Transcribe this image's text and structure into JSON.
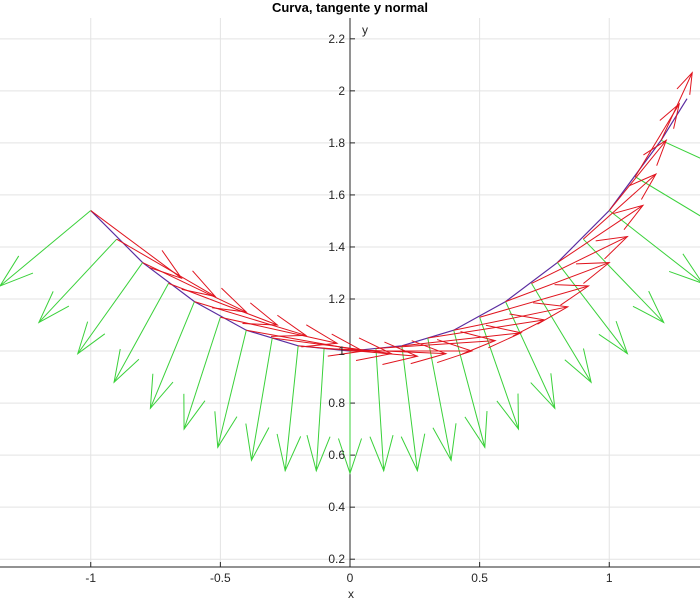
{
  "chart_data": {
    "type": "line",
    "title": "Curva, tangente y normal",
    "xlabel": "x",
    "ylabel": "y",
    "xlim": [
      -1.35,
      1.35
    ],
    "ylim": [
      0.17,
      2.28
    ],
    "xticks": [
      -1,
      -0.5,
      0,
      0.5,
      1
    ],
    "xtick_labels": [
      "-1",
      "-0.5",
      "0",
      "0.5",
      "1"
    ],
    "yticks": [
      0.2,
      0.4,
      0.6,
      0.8,
      1,
      1.2,
      1.4,
      1.6,
      1.8,
      2,
      2.2
    ],
    "ytick_labels": [
      "0.2",
      "0.4",
      "0.6",
      "0.8",
      "1",
      "1.2",
      "1.4",
      "1.6",
      "1.8",
      "2",
      "2.2"
    ],
    "grid": true,
    "axes_through_origin": true,
    "series": [
      {
        "kind": "curve",
        "color": "#5a2ca0",
        "x": [
          -1,
          -0.8,
          -0.6,
          -0.4,
          -0.2,
          0,
          0.2,
          0.4,
          0.6,
          0.8,
          1,
          1.2,
          1.3
        ],
        "y": [
          1.54,
          1.34,
          1.19,
          1.08,
          1.02,
          1.0,
          1.02,
          1.08,
          1.19,
          1.34,
          1.54,
          1.81,
          1.97
        ]
      },
      {
        "kind": "tangent_vectors",
        "color": "#e0141e",
        "vectors": [
          {
            "x": -1.0,
            "y": 1.54,
            "u": 0.35,
            "v": -0.26
          },
          {
            "x": -0.9,
            "y": 1.43,
            "u": 0.38,
            "v": -0.22
          },
          {
            "x": -0.8,
            "y": 1.34,
            "u": 0.4,
            "v": -0.19
          },
          {
            "x": -0.7,
            "y": 1.26,
            "u": 0.42,
            "v": -0.16
          },
          {
            "x": -0.6,
            "y": 1.19,
            "u": 0.43,
            "v": -0.13
          },
          {
            "x": -0.5,
            "y": 1.13,
            "u": 0.45,
            "v": -0.1
          },
          {
            "x": -0.4,
            "y": 1.08,
            "u": 0.45,
            "v": -0.08
          },
          {
            "x": -0.3,
            "y": 1.05,
            "u": 0.46,
            "v": -0.06
          },
          {
            "x": -0.2,
            "y": 1.02,
            "u": 0.46,
            "v": -0.04
          },
          {
            "x": -0.1,
            "y": 1.01,
            "u": 0.47,
            "v": -0.02
          },
          {
            "x": 0.0,
            "y": 1.0,
            "u": 0.47,
            "v": 0.0
          },
          {
            "x": 0.1,
            "y": 1.01,
            "u": 0.46,
            "v": 0.03
          },
          {
            "x": 0.2,
            "y": 1.02,
            "u": 0.46,
            "v": 0.05
          },
          {
            "x": 0.3,
            "y": 1.05,
            "u": 0.45,
            "v": 0.07
          },
          {
            "x": 0.4,
            "y": 1.08,
            "u": 0.44,
            "v": 0.09
          },
          {
            "x": 0.5,
            "y": 1.13,
            "u": 0.42,
            "v": 0.12
          },
          {
            "x": 0.6,
            "y": 1.19,
            "u": 0.4,
            "v": 0.15
          },
          {
            "x": 0.7,
            "y": 1.26,
            "u": 0.37,
            "v": 0.18
          },
          {
            "x": 0.8,
            "y": 1.34,
            "u": 0.33,
            "v": 0.22
          },
          {
            "x": 0.9,
            "y": 1.43,
            "u": 0.28,
            "v": 0.25
          },
          {
            "x": 1.0,
            "y": 1.54,
            "u": 0.22,
            "v": 0.27
          },
          {
            "x": 1.1,
            "y": 1.67,
            "u": 0.17,
            "v": 0.28
          },
          {
            "x": 1.2,
            "y": 1.81,
            "u": 0.12,
            "v": 0.26
          }
        ]
      },
      {
        "kind": "normal_vectors",
        "color": "#3ad13a",
        "vectors": [
          {
            "x": -1.0,
            "y": 1.54,
            "u": -0.35,
            "v": -0.29
          },
          {
            "x": -0.9,
            "y": 1.43,
            "u": -0.3,
            "v": -0.32
          },
          {
            "x": -0.8,
            "y": 1.34,
            "u": -0.25,
            "v": -0.35
          },
          {
            "x": -0.7,
            "y": 1.26,
            "u": -0.21,
            "v": -0.38
          },
          {
            "x": -0.6,
            "y": 1.19,
            "u": -0.17,
            "v": -0.41
          },
          {
            "x": -0.5,
            "y": 1.13,
            "u": -0.14,
            "v": -0.43
          },
          {
            "x": -0.4,
            "y": 1.08,
            "u": -0.11,
            "v": -0.45
          },
          {
            "x": -0.3,
            "y": 1.05,
            "u": -0.08,
            "v": -0.47
          },
          {
            "x": -0.2,
            "y": 1.02,
            "u": -0.05,
            "v": -0.48
          },
          {
            "x": -0.1,
            "y": 1.01,
            "u": -0.03,
            "v": -0.47
          },
          {
            "x": 0.0,
            "y": 1.0,
            "u": 0.0,
            "v": -0.47
          },
          {
            "x": 0.1,
            "y": 1.01,
            "u": 0.03,
            "v": -0.47
          },
          {
            "x": 0.2,
            "y": 1.02,
            "u": 0.06,
            "v": -0.48
          },
          {
            "x": 0.3,
            "y": 1.05,
            "u": 0.09,
            "v": -0.47
          },
          {
            "x": 0.4,
            "y": 1.08,
            "u": 0.12,
            "v": -0.45
          },
          {
            "x": 0.5,
            "y": 1.13,
            "u": 0.15,
            "v": -0.43
          },
          {
            "x": 0.6,
            "y": 1.19,
            "u": 0.19,
            "v": -0.41
          },
          {
            "x": 0.7,
            "y": 1.26,
            "u": 0.23,
            "v": -0.38
          },
          {
            "x": 0.8,
            "y": 1.34,
            "u": 0.27,
            "v": -0.35
          },
          {
            "x": 0.9,
            "y": 1.43,
            "u": 0.31,
            "v": -0.32
          },
          {
            "x": 1.0,
            "y": 1.54,
            "u": 0.36,
            "v": -0.28
          },
          {
            "x": 1.1,
            "y": 1.67,
            "u": 0.4,
            "v": -0.24
          },
          {
            "x": 1.2,
            "y": 1.81,
            "u": 0.44,
            "v": -0.2
          }
        ]
      }
    ]
  }
}
